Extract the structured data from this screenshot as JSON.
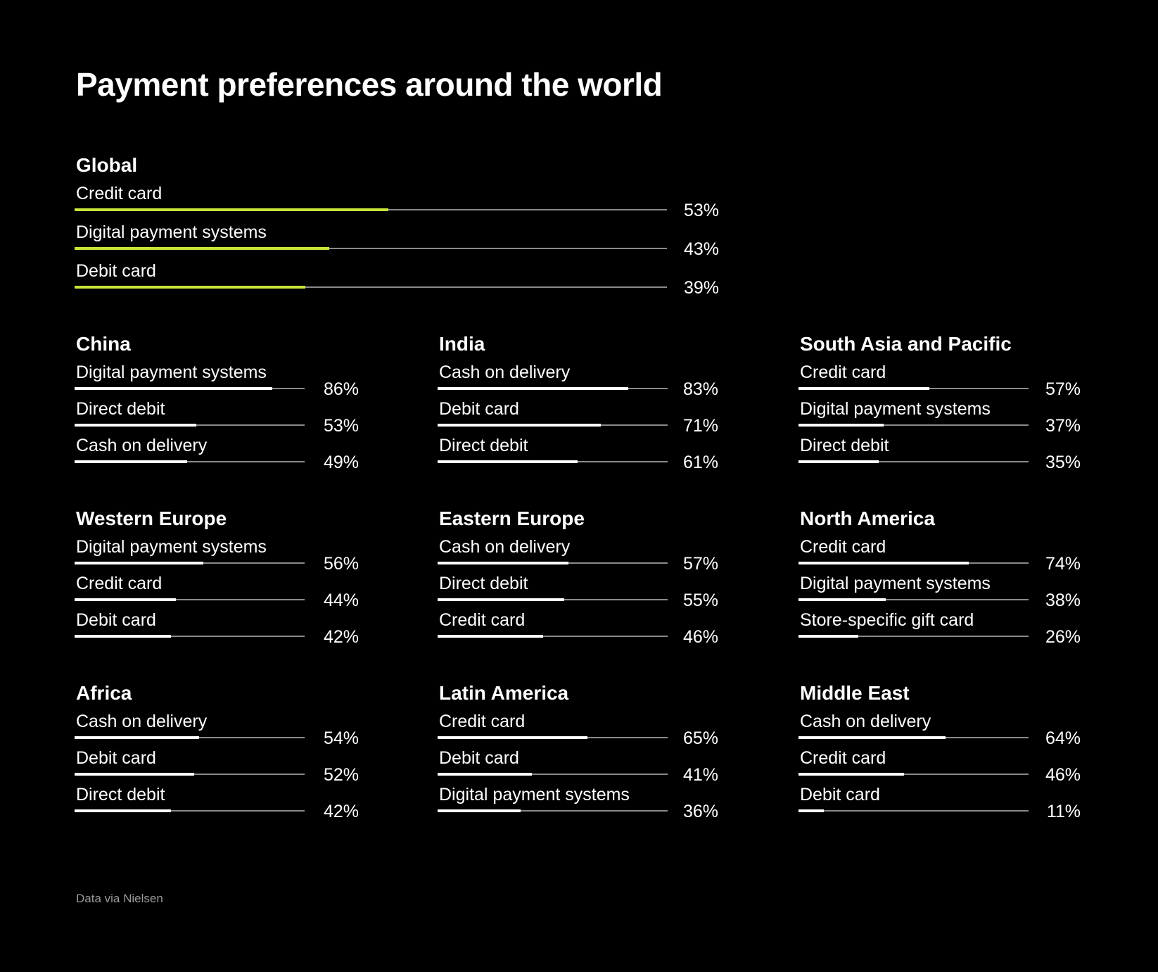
{
  "title": "Payment preferences around the world",
  "source": "Data via Nielsen",
  "colors": {
    "background": "#000000",
    "text": "#ffffff",
    "track": "#8a8a8a",
    "bar": "#ffffff",
    "global_bar": "#c6e43a",
    "source_text": "#9a9a9a"
  },
  "chart_data": [
    {
      "type": "bar",
      "title": "Global",
      "categories": [
        "Credit card",
        "Digital payment systems",
        "Debit card"
      ],
      "values": [
        53,
        43,
        39
      ],
      "value_labels": [
        "53%",
        "43%",
        "39%"
      ],
      "xlim": [
        0,
        100
      ]
    },
    {
      "type": "bar",
      "title": "China",
      "categories": [
        "Digital payment systems",
        "Direct debit",
        "Cash on delivery"
      ],
      "values": [
        86,
        53,
        49
      ],
      "value_labels": [
        "86%",
        "53%",
        "49%"
      ],
      "xlim": [
        0,
        100
      ]
    },
    {
      "type": "bar",
      "title": "India",
      "categories": [
        "Cash on delivery",
        "Debit card",
        "Direct debit"
      ],
      "values": [
        83,
        71,
        61
      ],
      "value_labels": [
        "83%",
        "71%",
        "61%"
      ],
      "xlim": [
        0,
        100
      ]
    },
    {
      "type": "bar",
      "title": "South Asia and Pacific",
      "categories": [
        "Credit card",
        "Digital payment systems",
        "Direct debit"
      ],
      "values": [
        57,
        37,
        35
      ],
      "value_labels": [
        "57%",
        "37%",
        "35%"
      ],
      "xlim": [
        0,
        100
      ]
    },
    {
      "type": "bar",
      "title": "Western Europe",
      "categories": [
        "Digital payment systems",
        "Credit card",
        "Debit card"
      ],
      "values": [
        56,
        44,
        42
      ],
      "value_labels": [
        "56%",
        "44%",
        "42%"
      ],
      "xlim": [
        0,
        100
      ]
    },
    {
      "type": "bar",
      "title": "Eastern Europe",
      "categories": [
        "Cash on delivery",
        "Direct debit",
        "Credit card"
      ],
      "values": [
        57,
        55,
        46
      ],
      "value_labels": [
        "57%",
        "55%",
        "46%"
      ],
      "xlim": [
        0,
        100
      ]
    },
    {
      "type": "bar",
      "title": "North America",
      "categories": [
        "Credit card",
        "Digital payment systems",
        "Store-specific gift card"
      ],
      "values": [
        74,
        38,
        26
      ],
      "value_labels": [
        "74%",
        "38%",
        "26%"
      ],
      "xlim": [
        0,
        100
      ]
    },
    {
      "type": "bar",
      "title": "Africa",
      "categories": [
        "Cash on delivery",
        "Debit card",
        "Direct debit"
      ],
      "values": [
        54,
        52,
        42
      ],
      "value_labels": [
        "54%",
        "52%",
        "42%"
      ],
      "xlim": [
        0,
        100
      ]
    },
    {
      "type": "bar",
      "title": "Latin America",
      "categories": [
        "Credit card",
        "Debit card",
        "Digital payment systems"
      ],
      "values": [
        65,
        41,
        36
      ],
      "value_labels": [
        "65%",
        "41%",
        "36%"
      ],
      "xlim": [
        0,
        100
      ]
    },
    {
      "type": "bar",
      "title": "Middle East",
      "categories": [
        "Cash on delivery",
        "Credit card",
        "Debit card"
      ],
      "values": [
        64,
        46,
        11
      ],
      "value_labels": [
        "64%",
        "46%",
        "11%"
      ],
      "xlim": [
        0,
        100
      ]
    }
  ]
}
